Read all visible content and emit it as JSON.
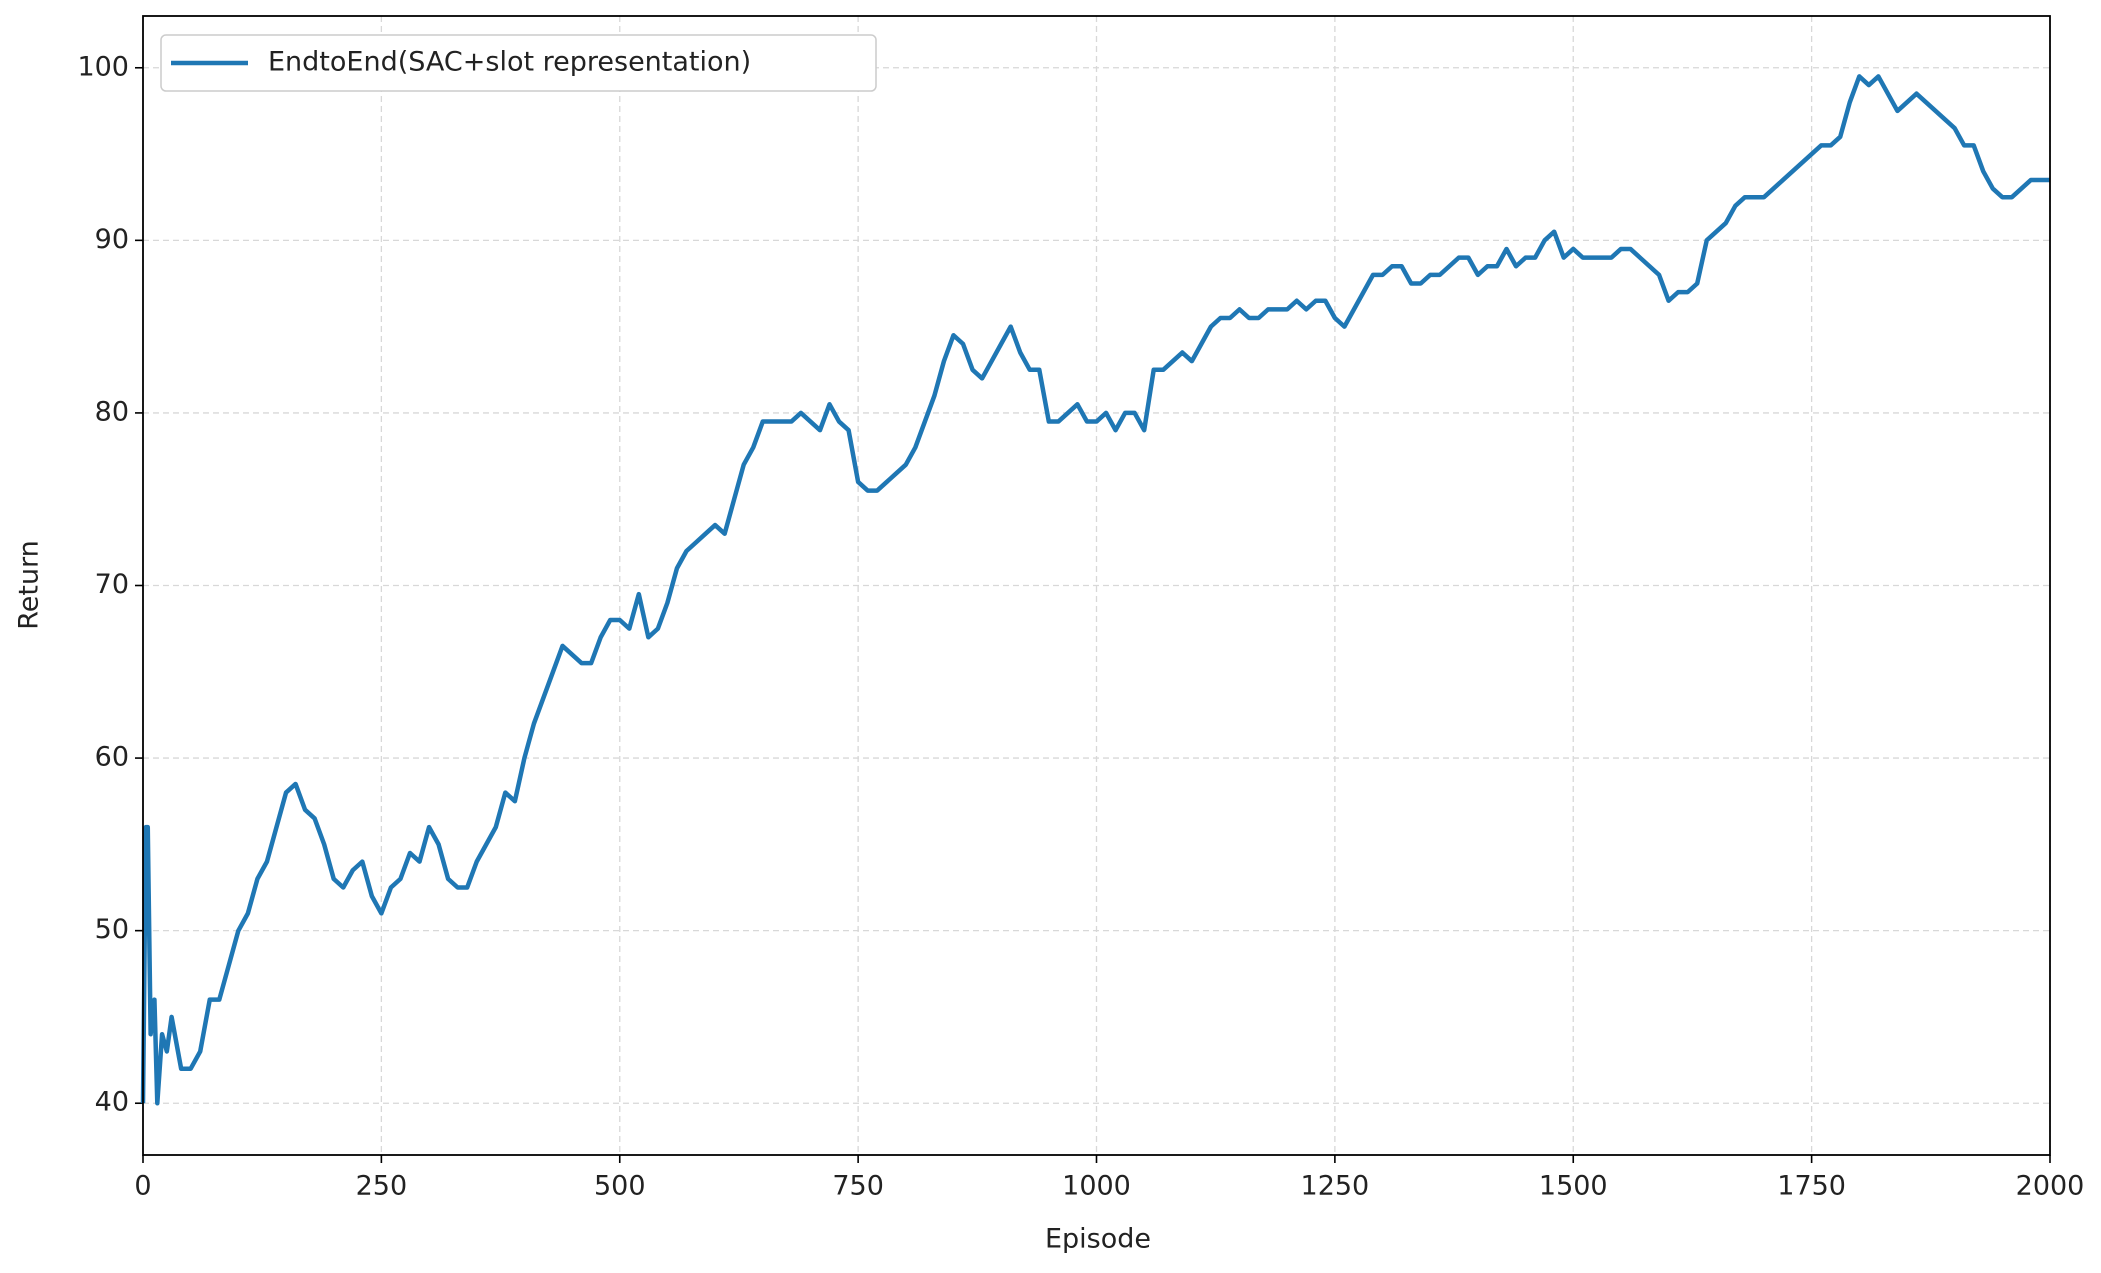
{
  "chart_data": {
    "type": "line",
    "xlabel": "Episode",
    "ylabel": "Return",
    "xlim": [
      0,
      2000
    ],
    "ylim": [
      37,
      103
    ],
    "xticks": [
      0,
      250,
      500,
      750,
      1000,
      1250,
      1500,
      1750,
      2000
    ],
    "yticks": [
      40,
      50,
      60,
      70,
      80,
      90,
      100
    ],
    "grid": true,
    "legend": "upper left",
    "x": [
      0,
      3,
      5,
      8,
      12,
      15,
      20,
      25,
      30,
      40,
      50,
      60,
      70,
      80,
      90,
      100,
      110,
      120,
      130,
      140,
      150,
      160,
      170,
      180,
      190,
      200,
      210,
      220,
      230,
      240,
      250,
      260,
      270,
      280,
      290,
      300,
      310,
      320,
      330,
      340,
      350,
      360,
      370,
      380,
      390,
      400,
      410,
      420,
      430,
      440,
      450,
      460,
      470,
      480,
      490,
      500,
      510,
      520,
      530,
      540,
      550,
      560,
      570,
      580,
      590,
      600,
      610,
      620,
      630,
      640,
      650,
      660,
      670,
      680,
      690,
      700,
      710,
      720,
      730,
      740,
      750,
      760,
      770,
      780,
      790,
      800,
      810,
      820,
      830,
      840,
      850,
      860,
      870,
      880,
      890,
      900,
      910,
      920,
      930,
      940,
      950,
      960,
      970,
      980,
      990,
      1000,
      1010,
      1020,
      1030,
      1040,
      1050,
      1060,
      1070,
      1080,
      1090,
      1100,
      1110,
      1120,
      1130,
      1140,
      1150,
      1160,
      1170,
      1180,
      1190,
      1200,
      1210,
      1220,
      1230,
      1240,
      1250,
      1260,
      1270,
      1280,
      1290,
      1300,
      1310,
      1320,
      1330,
      1340,
      1350,
      1360,
      1370,
      1380,
      1390,
      1400,
      1410,
      1420,
      1430,
      1440,
      1450,
      1460,
      1470,
      1480,
      1490,
      1500,
      1510,
      1520,
      1530,
      1540,
      1550,
      1560,
      1570,
      1580,
      1590,
      1600,
      1610,
      1620,
      1630,
      1640,
      1650,
      1660,
      1670,
      1680,
      1690,
      1700,
      1710,
      1720,
      1730,
      1740,
      1750,
      1760,
      1770,
      1780,
      1790,
      1800,
      1810,
      1820,
      1830,
      1840,
      1850,
      1860,
      1870,
      1880,
      1890,
      1900,
      1910,
      1920,
      1930,
      1940,
      1950,
      1960,
      1970,
      1980,
      1990,
      2000
    ],
    "series": [
      {
        "name": "EndtoEnd(SAC+slot representation)",
        "color": "#1f77b4",
        "values": [
          40,
          56,
          56,
          44,
          46,
          40,
          44,
          43,
          45,
          42,
          42,
          43,
          46,
          46,
          48,
          50,
          51,
          53,
          54,
          56,
          58,
          58.5,
          57,
          56.5,
          55,
          53,
          52.5,
          53.5,
          54,
          52,
          51,
          52.5,
          53,
          54.5,
          54,
          56,
          55,
          53,
          52.5,
          52.5,
          54,
          55,
          56,
          58,
          57.5,
          60,
          62,
          63.5,
          65,
          66.5,
          66,
          65.5,
          65.5,
          67,
          68,
          68,
          67.5,
          69.5,
          67,
          67.5,
          69,
          71,
          72,
          72.5,
          73,
          73.5,
          73,
          75,
          77,
          78,
          79.5,
          79.5,
          79.5,
          79.5,
          80,
          79.5,
          79,
          80.5,
          79.5,
          79,
          76,
          75.5,
          75.5,
          76,
          76.5,
          77,
          78,
          79.5,
          81,
          83,
          84.5,
          84,
          82.5,
          82,
          83,
          84,
          85,
          83.5,
          82.5,
          82.5,
          79.5,
          79.5,
          80,
          80.5,
          79.5,
          79.5,
          80,
          79,
          80,
          80,
          79,
          82.5,
          82.5,
          83,
          83.5,
          83,
          84,
          85,
          85.5,
          85.5,
          86,
          85.5,
          85.5,
          86,
          86,
          86,
          86.5,
          86,
          86.5,
          86.5,
          85.5,
          85,
          86,
          87,
          88,
          88,
          88.5,
          88.5,
          87.5,
          87.5,
          88,
          88,
          88.5,
          89,
          89,
          88,
          88.5,
          88.5,
          89.5,
          88.5,
          89,
          89,
          90,
          90.5,
          89,
          89.5,
          89,
          89,
          89,
          89,
          89.5,
          89.5,
          89,
          88.5,
          88,
          86.5,
          87,
          87,
          87.5,
          90,
          90.5,
          91,
          92,
          92.5,
          92.5,
          92.5,
          93,
          93.5,
          94,
          94.5,
          95,
          95.5,
          95.5,
          96,
          98,
          99.5,
          99,
          99.5,
          98.5,
          97.5,
          98,
          98.5,
          98,
          97.5,
          97,
          96.5,
          95.5,
          95.5,
          94,
          93,
          92.5,
          92.5,
          93,
          93.5,
          93.5,
          93.5
        ]
      }
    ]
  }
}
